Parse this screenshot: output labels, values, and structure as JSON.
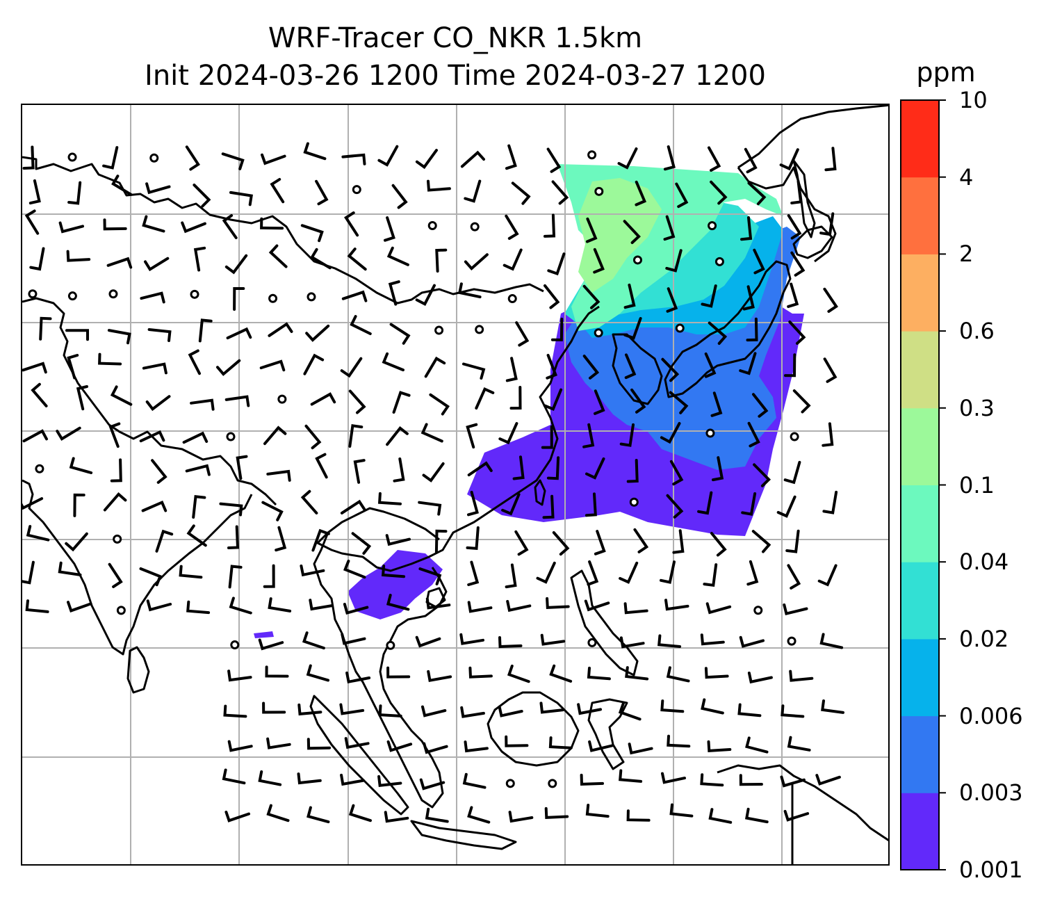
{
  "title": {
    "line1": "WRF-Tracer CO_NKR 1.5km",
    "line2": "Init 2024-03-26 1200 Time 2024-03-27 1200"
  },
  "colorbar": {
    "unit": "ppm",
    "levels": [
      "0.001",
      "0.003",
      "0.006",
      "0.02",
      "0.04",
      "0.1",
      "0.3",
      "0.6",
      "2",
      "4",
      "10"
    ],
    "colors": [
      "#6229FA",
      "#3278F2",
      "#06B2EB",
      "#32E0D4",
      "#6CF9BE",
      "#9CF99A",
      "#CFDF85",
      "#FDAF61",
      "#FF703E",
      "#FF2C18"
    ]
  },
  "map": {
    "gridlines": true,
    "coastline_color": "#000000",
    "grid_color": "#b0b0b0",
    "barb_color": "#000000"
  }
}
